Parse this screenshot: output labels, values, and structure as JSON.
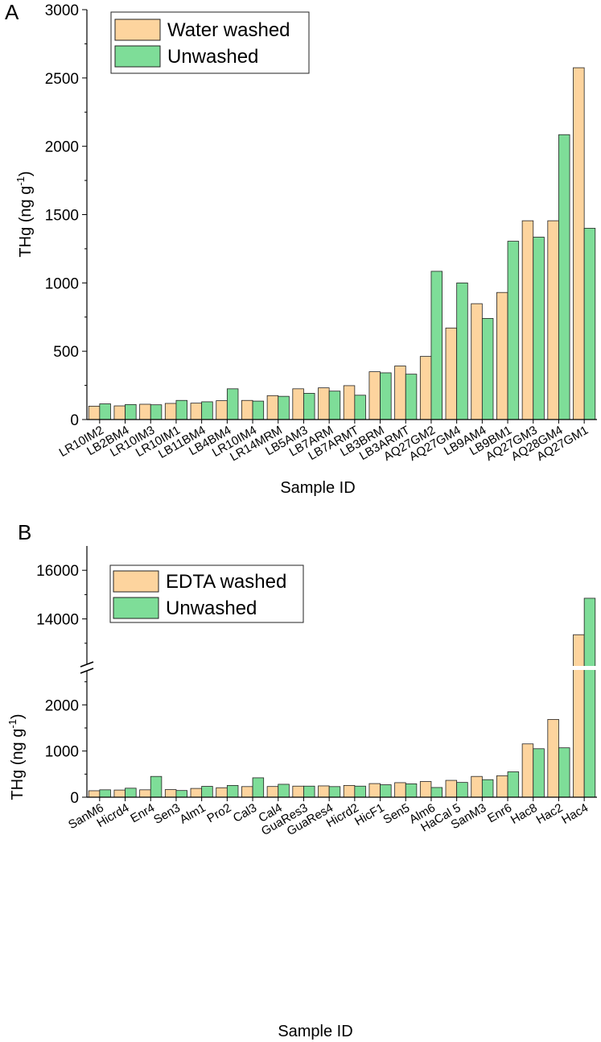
{
  "colors": {
    "washed": "#FDD49E",
    "unwashed": "#7EDD98",
    "stroke": "#222222"
  },
  "chart_data": [
    {
      "panel": "A",
      "type": "bar",
      "xlabel": "Sample ID",
      "ylabel": "THg (ng g",
      "ylabel_sup": "-1",
      "ylabel_end": ")",
      "ylim": [
        0,
        3000
      ],
      "yticks": [
        0,
        500,
        1000,
        1500,
        2000,
        2500,
        3000
      ],
      "legend": [
        "Water washed",
        "Unwashed"
      ],
      "categories": [
        "LR10IM2",
        "LB2BM4",
        "LR10IM3",
        "LR10IM1",
        "LB11BM4",
        "LB4BM4",
        "LR10IM4",
        "LR14MRM",
        "LB5AM3",
        "LB7ARM",
        "LB7ARMT",
        "LB3BRM",
        "LB3ARMT",
        "AQ27GM2",
        "AQ27GM4",
        "LB9AM4",
        "LB9BM1",
        "AQ27GM3",
        "AQ28GM4",
        "AQ27GM1"
      ],
      "series": [
        {
          "name": "Water washed",
          "values": [
            98,
            100,
            112,
            118,
            120,
            138,
            140,
            175,
            225,
            232,
            248,
            350,
            392,
            462,
            670,
            848,
            930,
            1455,
            1455,
            2575
          ]
        },
        {
          "name": "Unwashed",
          "values": [
            115,
            110,
            108,
            140,
            130,
            225,
            135,
            170,
            192,
            208,
            178,
            342,
            332,
            1085,
            1000,
            740,
            1305,
            1335,
            2085,
            1400
          ]
        }
      ]
    },
    {
      "panel": "B",
      "type": "bar",
      "xlabel": "Sample ID",
      "ylabel": "THg (ng g",
      "ylabel_sup": "-1",
      "ylabel_end": ")",
      "axis_break": true,
      "lower_ylim": [
        0,
        3000
      ],
      "upper_ylim": [
        12000,
        17000
      ],
      "yticks_lower": [
        0,
        1000,
        2000
      ],
      "yticks_upper": [
        14000,
        16000
      ],
      "legend": [
        "EDTA washed",
        "Unwashed"
      ],
      "categories": [
        "SanM6",
        "Hicrd4",
        "Enr4",
        "Sen3",
        "Alm1",
        "Pro2",
        "Cal3",
        "Cal4",
        "GuaRes3",
        "GuaRes4",
        "Hicrd2",
        "HicF1",
        "Sen5",
        "Alm6",
        "HaCal 5",
        "SanM3",
        "Enr6",
        "Hac8",
        "Hac2",
        "Hac4"
      ],
      "series": [
        {
          "name": "EDTA washed",
          "values": [
            140,
            155,
            160,
            165,
            190,
            205,
            230,
            232,
            240,
            245,
            255,
            295,
            315,
            340,
            365,
            450,
            465,
            1155,
            1685,
            13350
          ]
        },
        {
          "name": "Unwashed",
          "values": [
            160,
            195,
            450,
            145,
            235,
            255,
            420,
            280,
            240,
            230,
            240,
            270,
            290,
            210,
            320,
            380,
            550,
            1050,
            1070,
            14850
          ]
        }
      ]
    }
  ]
}
